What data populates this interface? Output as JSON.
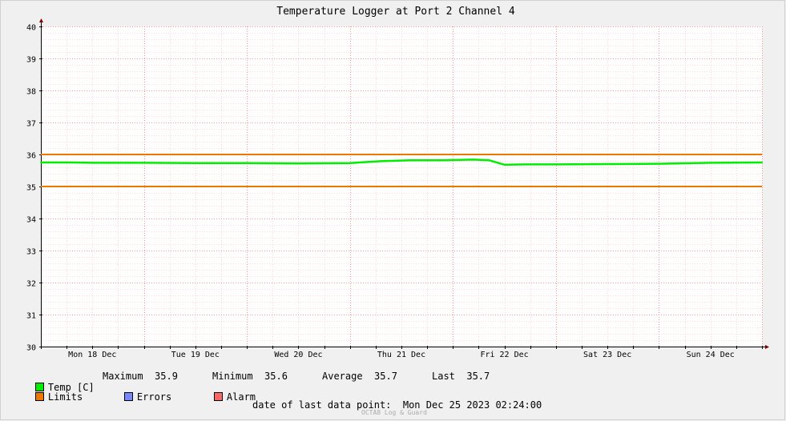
{
  "chart_data": {
    "type": "line",
    "title": "Temperature Logger at Port 2 Channel 4",
    "ylim": [
      30,
      40
    ],
    "y_ticks": [
      30,
      31,
      32,
      33,
      34,
      35,
      36,
      37,
      38,
      39,
      40
    ],
    "x_labels": [
      "Mon 18 Dec",
      "Tue 19 Dec",
      "Wed 20 Dec",
      "Thu 21 Dec",
      "Fri 22 Dec",
      "Sat 23 Dec",
      "Sun 24 Dec"
    ],
    "grid": true,
    "limits": [
      35,
      36
    ],
    "series": [
      {
        "name": "Temp [C]",
        "color": "#00ee00",
        "x": [
          0,
          0.3,
          0.5,
          1.0,
          1.5,
          2.0,
          2.5,
          3.0,
          3.3,
          3.6,
          3.9,
          4.2,
          4.35,
          4.5,
          4.7,
          5.0,
          5.5,
          6.0,
          6.5,
          7.0
        ],
        "values": [
          35.75,
          35.75,
          35.74,
          35.74,
          35.73,
          35.73,
          35.72,
          35.73,
          35.79,
          35.82,
          35.82,
          35.84,
          35.82,
          35.68,
          35.69,
          35.69,
          35.7,
          35.71,
          35.74,
          35.75
        ]
      }
    ]
  },
  "legend": {
    "temp_label": "Temp [C]",
    "max_label": "Maximum",
    "max_value": "35.9",
    "min_label": "Minimum",
    "min_value": "35.6",
    "avg_label": "Average",
    "avg_value": "35.7",
    "last_label": "Last",
    "last_value": "35.7",
    "limits_label": "Limits",
    "errors_label": "Errors",
    "alarm_label": "Alarm"
  },
  "colors": {
    "temp": "#00ee00",
    "limits": "#ee7700",
    "errors": "#7788ff",
    "alarm": "#ff6666"
  },
  "footer": {
    "date_label": "date of last data point:",
    "date_value": "Mon Dec 25 2023 02:24:00",
    "watermark": "OCTA8 Log & Guard"
  }
}
